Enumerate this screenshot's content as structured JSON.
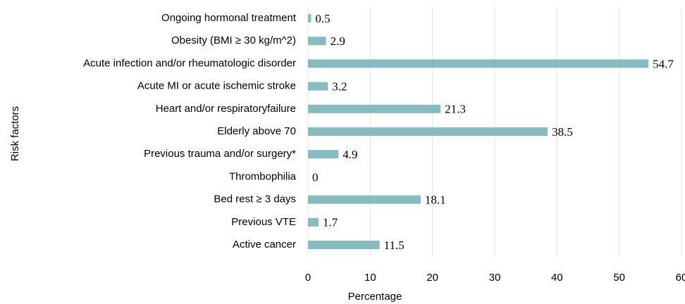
{
  "chart_data": {
    "type": "bar",
    "orientation": "horizontal",
    "x_label": "Percentage",
    "y_label": "Risk factors",
    "categories": [
      "Ongoing hormonal treatment",
      "Obesity (BMI ≥ 30 kg/m^2)",
      "Acute infection and/or rheumatologic disorder",
      "Acute MI or acute ischemic stroke",
      "Heart and/or respiratoryfailure",
      "Elderly above 70",
      "Previous trauma and/or surgery*",
      "Thrombophilia",
      "Bed rest ≥ 3 days",
      "Previous VTE",
      "Active cancer"
    ],
    "values": [
      0.5,
      2.9,
      54.7,
      3.2,
      21.3,
      38.5,
      4.9,
      0,
      18.1,
      1.7,
      11.5
    ],
    "color": "#86bcc0",
    "xlim": [
      0,
      60
    ],
    "xticks": [
      0,
      10,
      20,
      30,
      40,
      50,
      60
    ],
    "grid": true
  }
}
